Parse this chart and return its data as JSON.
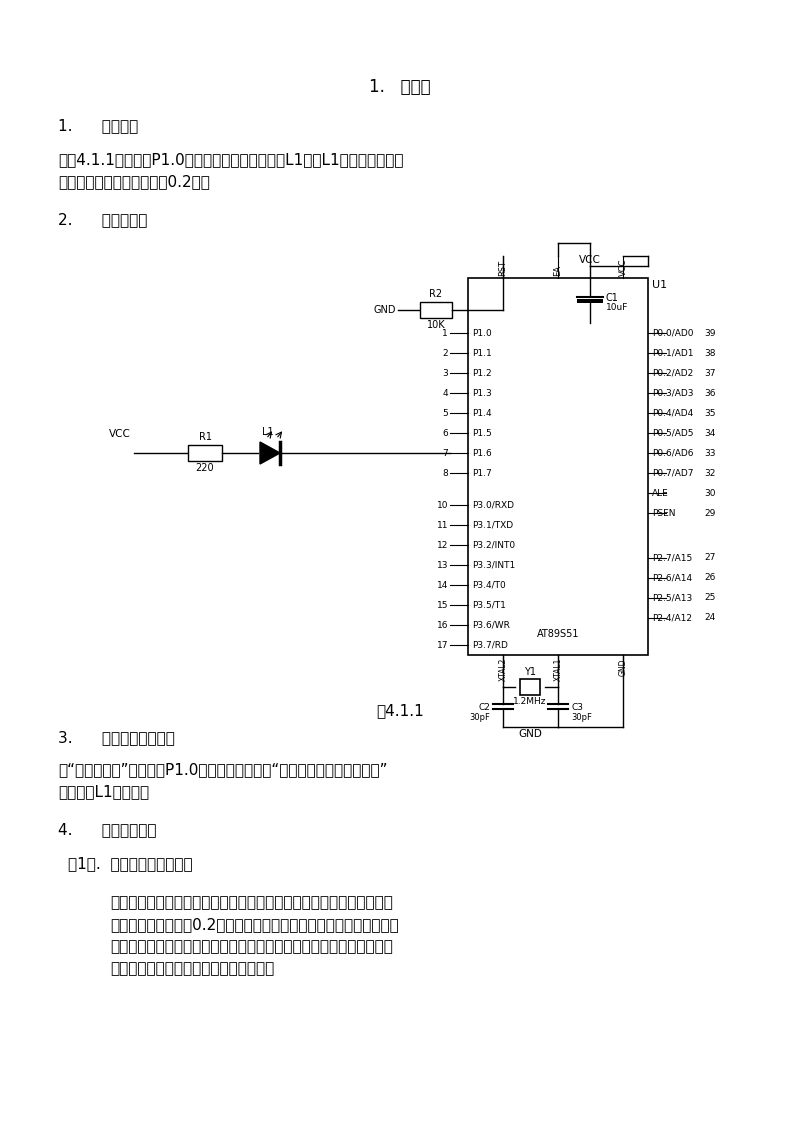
{
  "title_center": "1.   闪烁灯",
  "section1_heading": "1.      实验任务",
  "section1_line1": "如图4.1.1所示：在P1.0端口上接一个发光二极管L1，使L1在不停地一亮一",
  "section1_line2": "灯，一亮一灯的时间间隔为0.2秒。",
  "section2_heading": "2.      电路原理图",
  "figure_caption": "图4.1.1",
  "section3_heading": "3.      系统板上硬件连线",
  "section3_line1": "把“单片机系统”区域中的P1.0端口用导线连接到“八路发光二极管指示模块”",
  "section3_line2": "区域中的L1端口上。",
  "section4_heading": "4.      程序设计内容",
  "section4_sub": "（1）.  延时程序的设计方法",
  "section4_line1": "作为单片机的指令的执行的时间是很短，数量大微秒级，因此，我们要",
  "section4_line2": "求的闪烁时间间隔为0.2秒，相对于微秒来说，相差太大，所以我们在",
  "section4_line3": "执行某一指令时，插入延时程序，来达到我们的要求，但这样的延时程",
  "section4_line4": "序是如何设计呢？下面具体介绍其原理：",
  "bg_color": "#ffffff"
}
